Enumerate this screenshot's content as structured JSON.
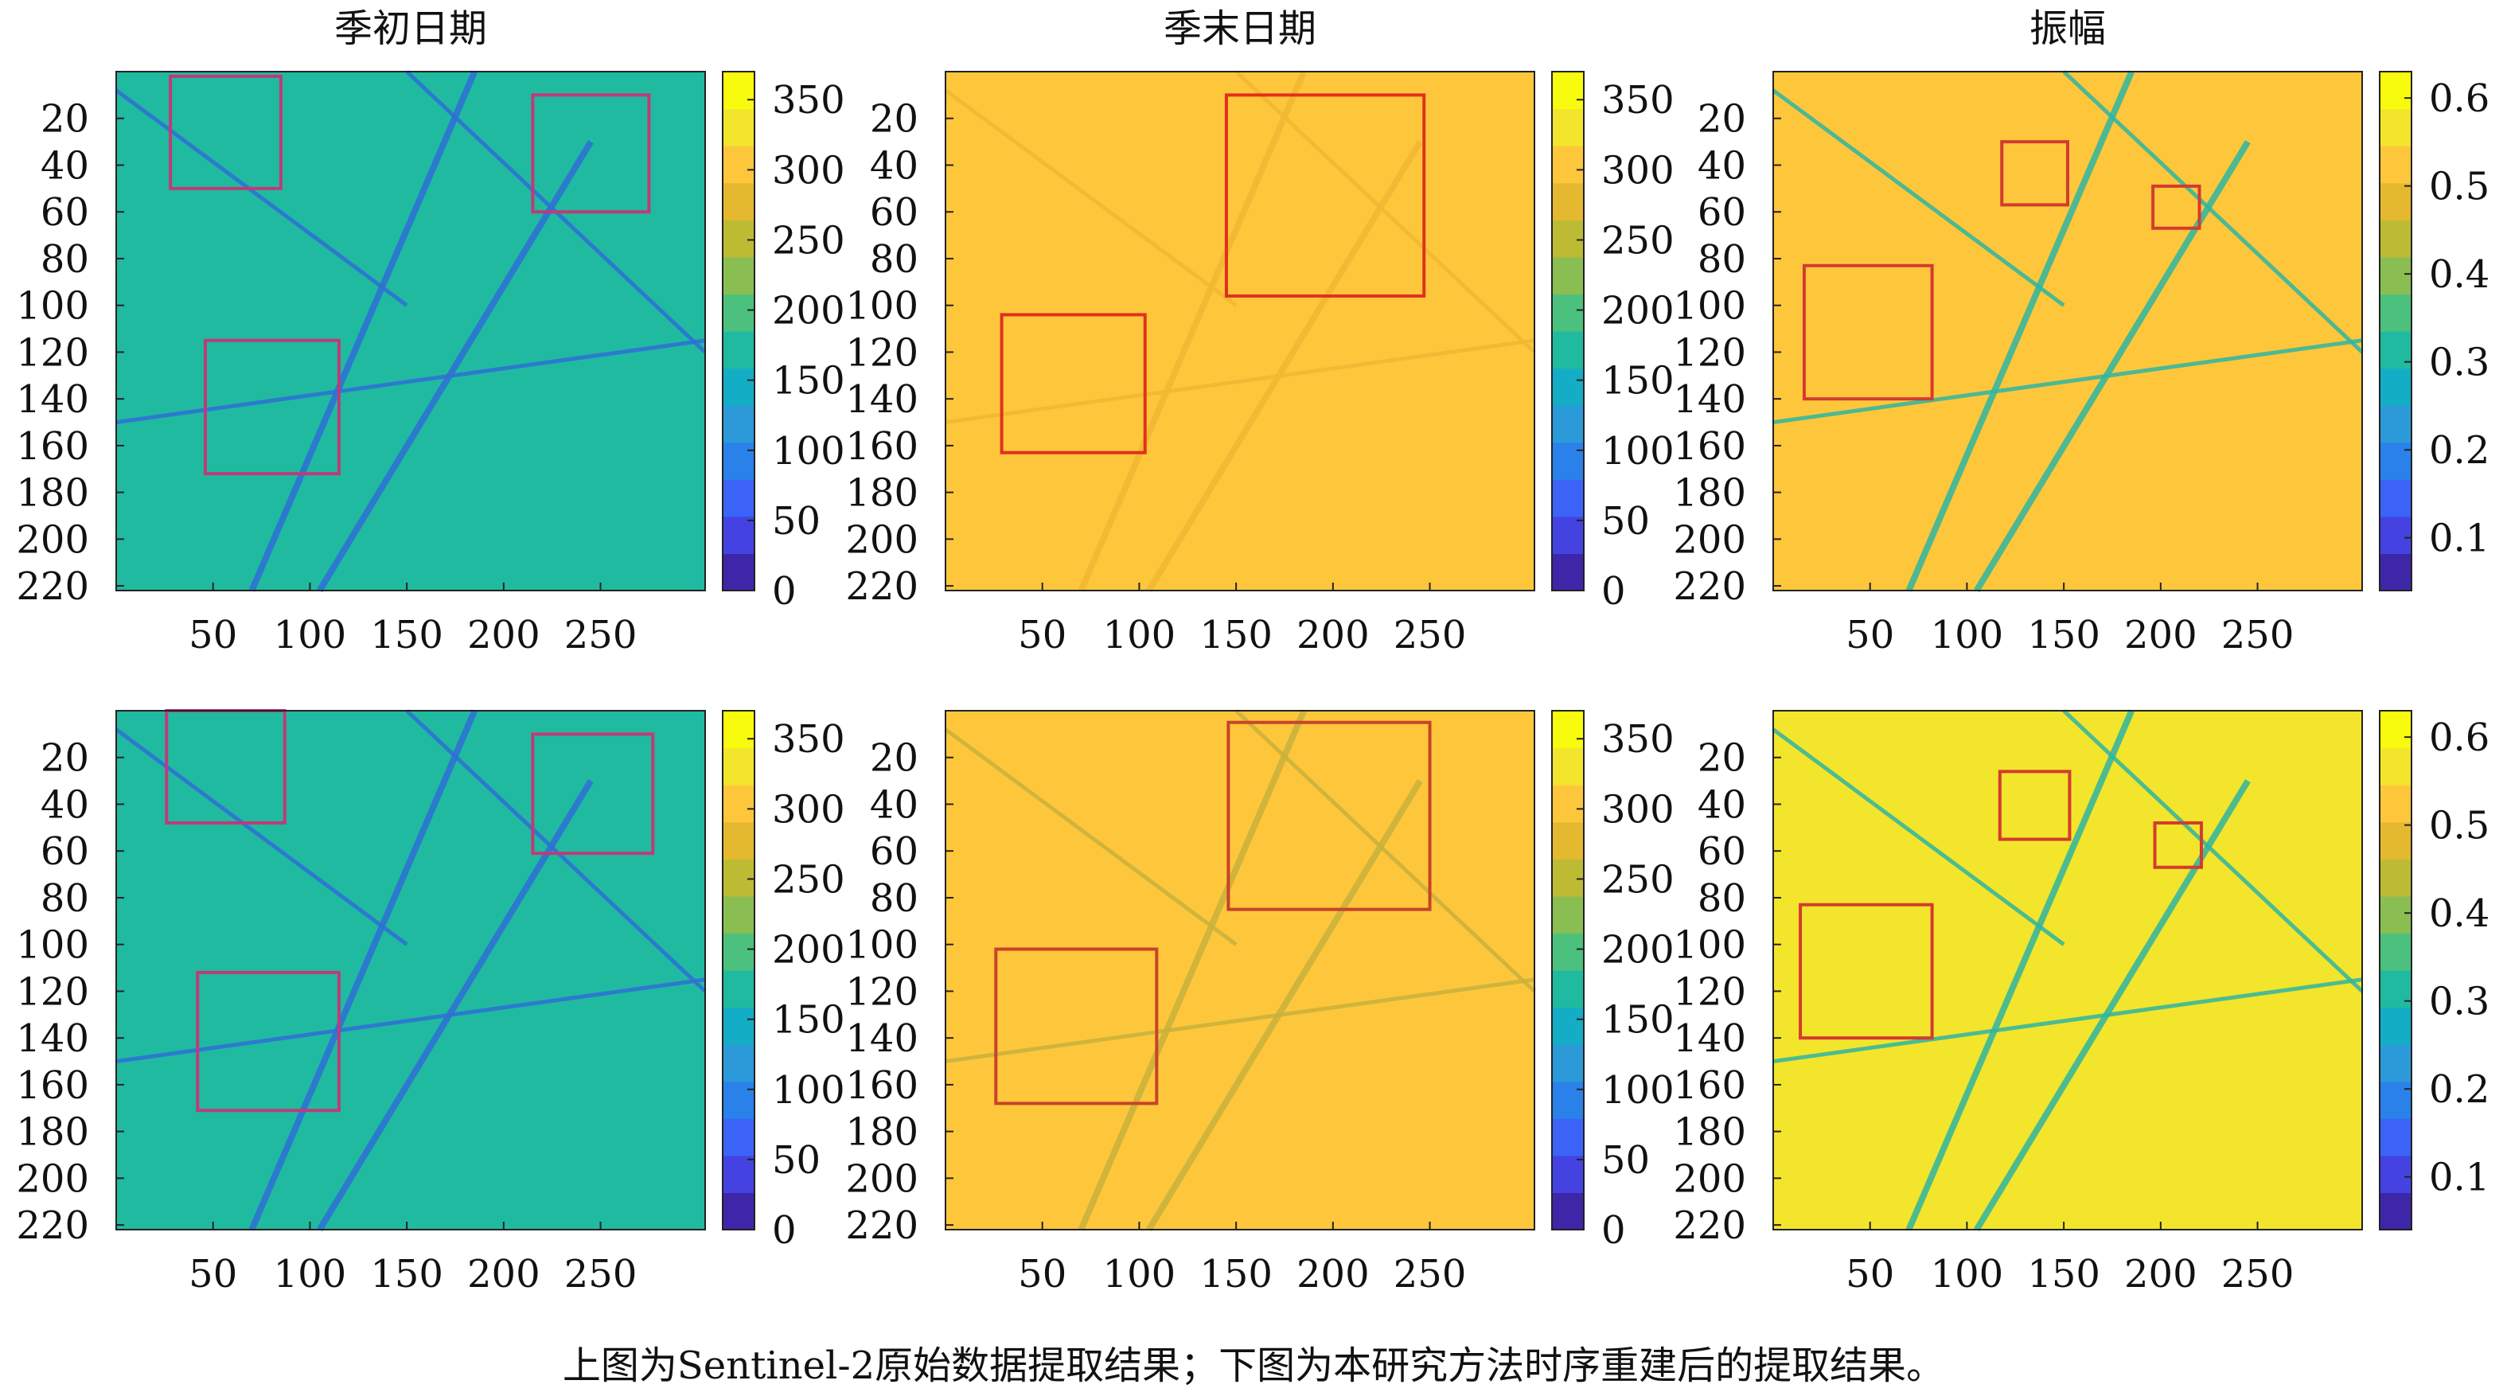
{
  "caption": "上图为Sentinel-2原始数据提取结果；下图为本研究方法时序重建后的提取结果。",
  "chart_data": [
    {
      "type": "heatmap",
      "row": "上",
      "title": "季初日期",
      "x_ticks": [
        50,
        100,
        150,
        200,
        250
      ],
      "y_ticks": [
        20,
        40,
        60,
        80,
        100,
        120,
        140,
        160,
        180,
        200,
        220
      ],
      "colorbar_ticks": [
        0,
        50,
        100,
        150,
        200,
        250,
        300,
        350
      ],
      "colorbar_range": [
        0,
        370
      ],
      "dominant_value": 160,
      "feature_value": 110,
      "feature_color": "#2f6fd6",
      "boxes": [
        {
          "x": [
            28,
            85
          ],
          "y": [
            2,
            50
          ]
        },
        {
          "x": [
            215,
            275
          ],
          "y": [
            10,
            60
          ]
        },
        {
          "x": [
            46,
            115
          ],
          "y": [
            115,
            172
          ]
        }
      ],
      "box_color": "#c03a78"
    },
    {
      "type": "heatmap",
      "row": "上",
      "title": "季末日期",
      "x_ticks": [
        50,
        100,
        150,
        200,
        250
      ],
      "y_ticks": [
        20,
        40,
        60,
        80,
        100,
        120,
        140,
        160,
        180,
        200,
        220
      ],
      "colorbar_ticks": [
        0,
        50,
        100,
        150,
        200,
        250,
        300,
        350
      ],
      "colorbar_range": [
        0,
        370
      ],
      "dominant_value": 305,
      "feature_value": 320,
      "feature_color": "#f2b733",
      "boxes": [
        {
          "x": [
            145,
            247
          ],
          "y": [
            10,
            96
          ]
        },
        {
          "x": [
            29,
            103
          ],
          "y": [
            104,
            163
          ]
        }
      ],
      "box_color": "#e2301f"
    },
    {
      "type": "heatmap",
      "row": "上",
      "title": "振幅",
      "x_ticks": [
        50,
        100,
        150,
        200,
        250
      ],
      "y_ticks": [
        20,
        40,
        60,
        80,
        100,
        120,
        140,
        160,
        180,
        200,
        220
      ],
      "colorbar_ticks": [
        0.1,
        0.2,
        0.3,
        0.4,
        0.5,
        0.6
      ],
      "colorbar_range": [
        0.04,
        0.63
      ],
      "dominant_value": 0.53,
      "feature_value": 0.3,
      "feature_color": "#2fb6a2",
      "boxes": [
        {
          "x": [
            118,
            152
          ],
          "y": [
            30,
            57
          ]
        },
        {
          "x": [
            196,
            220
          ],
          "y": [
            49,
            67
          ]
        },
        {
          "x": [
            16,
            82
          ],
          "y": [
            83,
            140
          ]
        }
      ],
      "box_color": "#d43b30"
    },
    {
      "type": "heatmap",
      "row": "下",
      "title": "",
      "x_ticks": [
        50,
        100,
        150,
        200,
        250
      ],
      "y_ticks": [
        20,
        40,
        60,
        80,
        100,
        120,
        140,
        160,
        180,
        200,
        220
      ],
      "colorbar_ticks": [
        0,
        50,
        100,
        150,
        200,
        250,
        300,
        350
      ],
      "colorbar_range": [
        0,
        370
      ],
      "dominant_value": 160,
      "feature_value": 110,
      "feature_color": "#2f6fd6",
      "boxes": [
        {
          "x": [
            26,
            87
          ],
          "y": [
            0,
            48
          ]
        },
        {
          "x": [
            215,
            277
          ],
          "y": [
            10,
            61
          ]
        },
        {
          "x": [
            42,
            115
          ],
          "y": [
            112,
            171
          ]
        }
      ],
      "box_color": "#c03a78"
    },
    {
      "type": "heatmap",
      "row": "下",
      "title": "",
      "x_ticks": [
        50,
        100,
        150,
        200,
        250
      ],
      "y_ticks": [
        20,
        40,
        60,
        80,
        100,
        120,
        140,
        160,
        180,
        200,
        220
      ],
      "colorbar_ticks": [
        0,
        50,
        100,
        150,
        200,
        250,
        300,
        350
      ],
      "colorbar_range": [
        0,
        370
      ],
      "dominant_value": 300,
      "feature_value": 275,
      "feature_color": "#c9b13d",
      "boxes": [
        {
          "x": [
            146,
            250
          ],
          "y": [
            5,
            85
          ]
        },
        {
          "x": [
            26,
            109
          ],
          "y": [
            102,
            168
          ]
        }
      ],
      "box_color": "#c8432a"
    },
    {
      "type": "heatmap",
      "row": "下",
      "title": "",
      "x_ticks": [
        50,
        100,
        150,
        200,
        250
      ],
      "y_ticks": [
        20,
        40,
        60,
        80,
        100,
        120,
        140,
        160,
        180,
        200,
        220
      ],
      "colorbar_ticks": [
        0.1,
        0.2,
        0.3,
        0.4,
        0.5,
        0.6
      ],
      "colorbar_range": [
        0.04,
        0.63
      ],
      "dominant_value": 0.55,
      "feature_value": 0.3,
      "feature_color": "#2fb6a2",
      "boxes": [
        {
          "x": [
            117,
            153
          ],
          "y": [
            26,
            55
          ]
        },
        {
          "x": [
            197,
            221
          ],
          "y": [
            48,
            67
          ]
        },
        {
          "x": [
            14,
            82
          ],
          "y": [
            83,
            140
          ]
        }
      ],
      "box_color": "#d43b30"
    }
  ],
  "colors": {
    "colormap": [
      "#3e26a8",
      "#4443e2",
      "#3b63f7",
      "#2a81ea",
      "#2c9ad8",
      "#13adc5",
      "#20baa1",
      "#4cc17d",
      "#8bbe52",
      "#bdbb34",
      "#e5b92f",
      "#fec73b",
      "#f3e52b",
      "#f9fb0e"
    ]
  }
}
